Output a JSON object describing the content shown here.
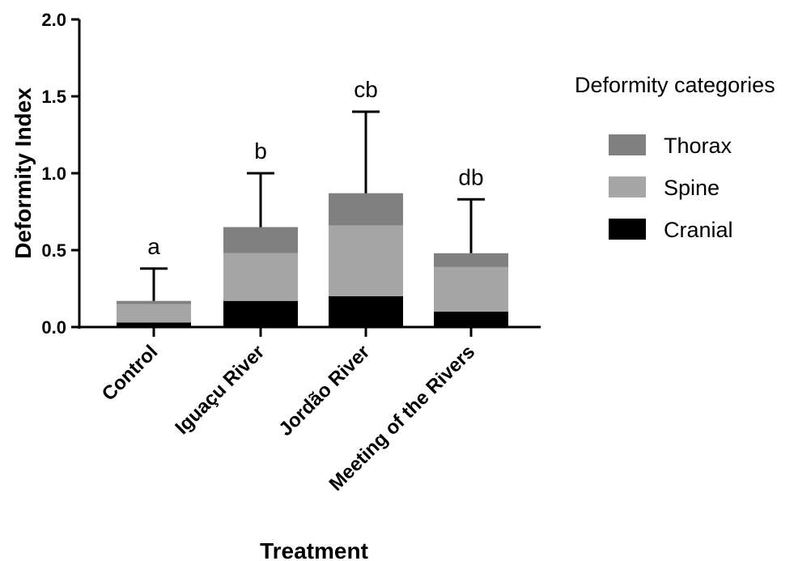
{
  "chart_data": {
    "type": "bar",
    "stacked": true,
    "xlabel": "Treatment",
    "ylabel": "Deformity Index",
    "ylim": [
      0,
      2.0
    ],
    "yticks": [
      0.0,
      0.5,
      1.0,
      1.5,
      2.0
    ],
    "ytick_labels": [
      "0.0",
      "0.5",
      "1.0",
      "1.5",
      "2.0"
    ],
    "categories": [
      "Control",
      "Iguaçu River",
      "Jordão River",
      "Meeting of the Rivers"
    ],
    "series": [
      {
        "name": "Cranial",
        "color": "#000000",
        "values": [
          0.03,
          0.17,
          0.2,
          0.1
        ]
      },
      {
        "name": "Spine",
        "color": "#a6a6a6",
        "values": [
          0.12,
          0.31,
          0.46,
          0.29
        ]
      },
      {
        "name": "Thorax",
        "color": "#808080",
        "values": [
          0.02,
          0.17,
          0.21,
          0.09
        ]
      }
    ],
    "error_upper": [
      0.38,
      1.0,
      1.4,
      0.83
    ],
    "significance_labels": [
      "a",
      "b",
      "cb",
      "db"
    ],
    "legend": {
      "title": "Deformity categories",
      "placement": "right",
      "entries": [
        "Thorax",
        "Spine",
        "Cranial"
      ]
    },
    "grid": false
  }
}
